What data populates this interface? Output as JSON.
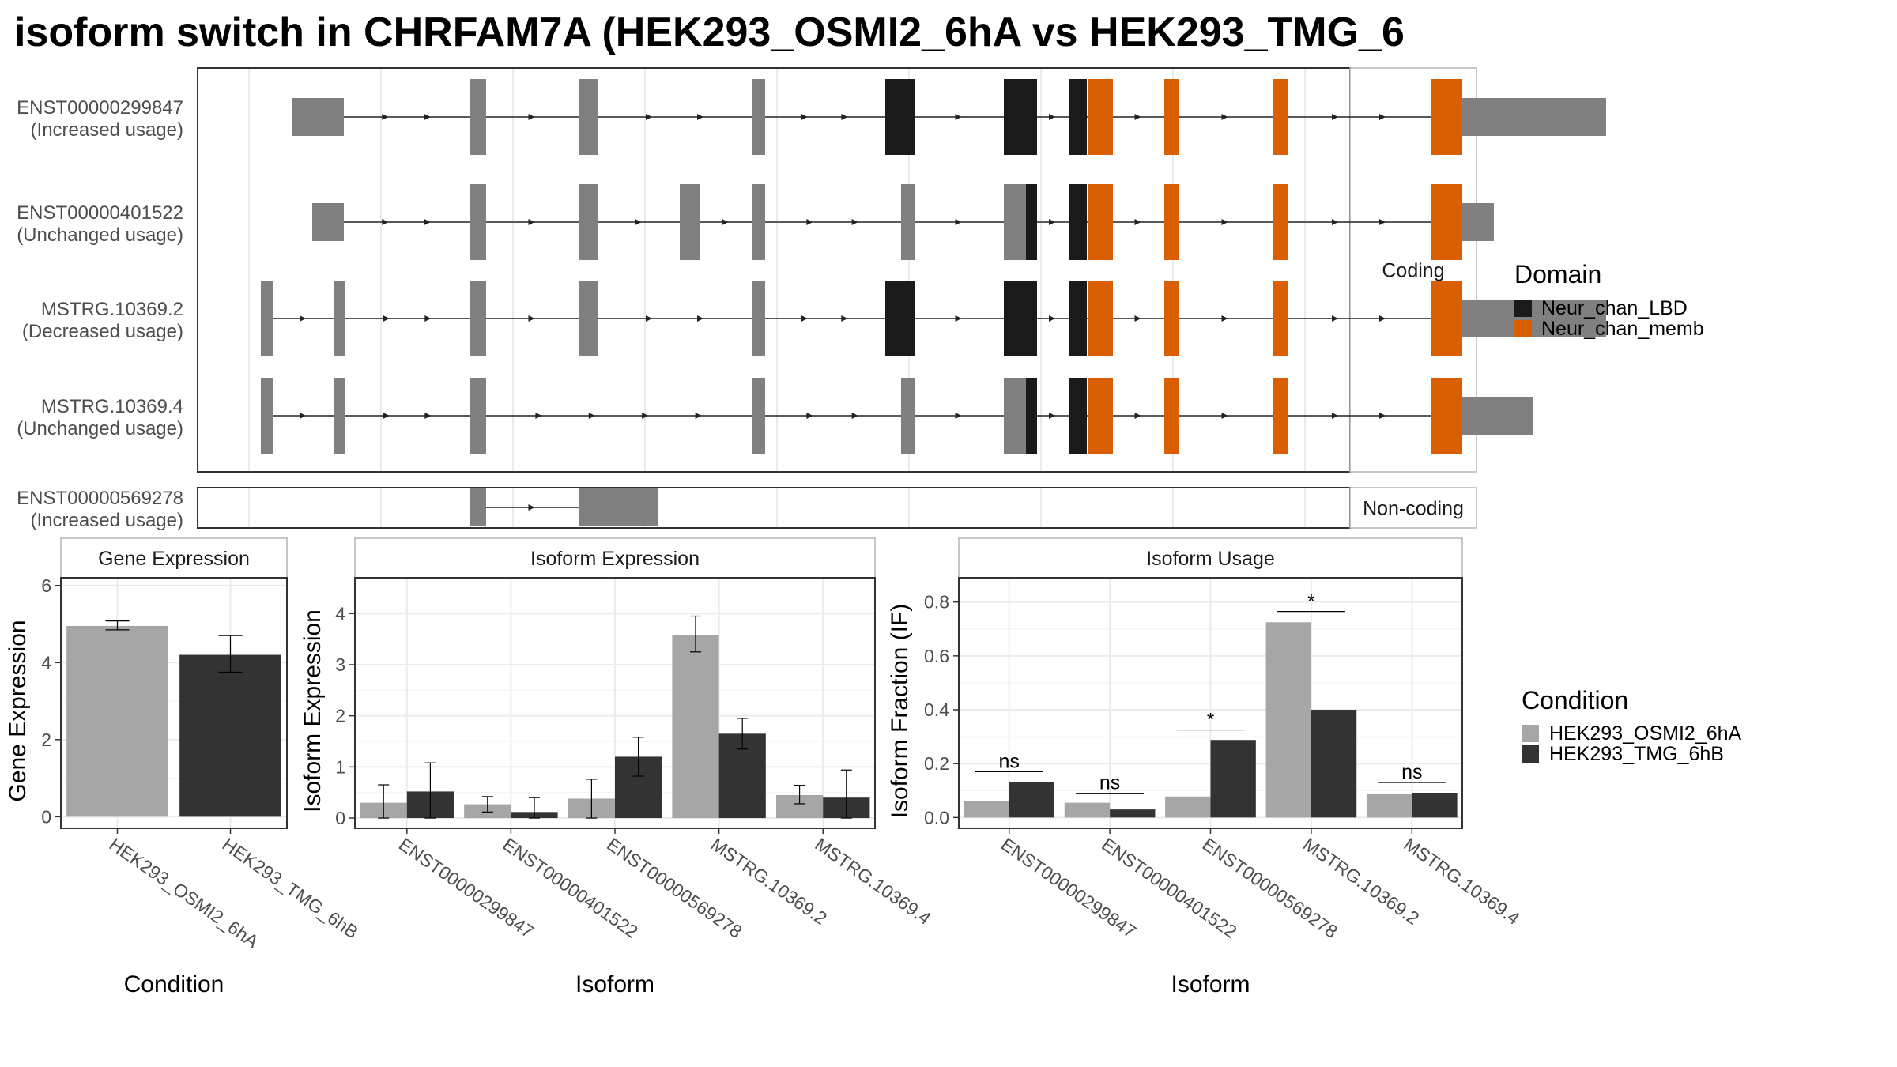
{
  "title": "isoform switch in CHRFAM7A (HEK293_OSMI2_6hA vs HEK293_TMG_6",
  "domains": {
    "title": "Domain",
    "items": [
      {
        "label": "Neur_chan_LBD",
        "color": "#1a1a1a"
      },
      {
        "label": "Neur_chan_memb",
        "color": "#d95f02"
      }
    ]
  },
  "conditions": {
    "title": "Condition",
    "items": [
      {
        "label": "HEK293_OSMI2_6hA",
        "color": "#a6a6a6"
      },
      {
        "label": "HEK293_TMG_6hB",
        "color": "#333333"
      }
    ]
  },
  "structure": {
    "coding_label": "Coding",
    "noncoding_label": "Non-coding",
    "transcripts": [
      {
        "id": "ENST00000299847",
        "usage": "(Increased usage)",
        "group": "coding",
        "exons": [
          [
            120,
            185
          ],
          [
            345,
            365
          ],
          [
            482,
            493
          ],
          [
            493,
            507
          ],
          [
            702,
            718
          ],
          [
            870,
            890
          ],
          [
            890,
            907
          ],
          [
            1020,
            1062
          ],
          [
            1102,
            1125
          ],
          [
            1140,
            1158
          ],
          [
            1223,
            1241
          ],
          [
            1360,
            1380
          ],
          [
            1560,
            1600
          ],
          [
            1600,
            1782
          ]
        ],
        "domains": [
          {
            "start": 870,
            "end": 907,
            "type": 0
          },
          {
            "start": 1020,
            "end": 1062,
            "type": 0
          },
          {
            "start": 1102,
            "end": 1125,
            "type": 0
          },
          {
            "start": 1127,
            "end": 1158,
            "type": 1
          },
          {
            "start": 1223,
            "end": 1241,
            "type": 1
          },
          {
            "start": 1360,
            "end": 1380,
            "type": 1
          },
          {
            "start": 1560,
            "end": 1600,
            "type": 1
          }
        ]
      },
      {
        "id": "ENST00000401522",
        "usage": "(Unchanged usage)",
        "group": "coding",
        "exons": [
          [
            145,
            185
          ],
          [
            345,
            365
          ],
          [
            482,
            507
          ],
          [
            610,
            635
          ],
          [
            702,
            718
          ],
          [
            890,
            907
          ],
          [
            1020,
            1048
          ],
          [
            1048,
            1062
          ],
          [
            1102,
            1125
          ],
          [
            1140,
            1158
          ],
          [
            1223,
            1241
          ],
          [
            1360,
            1380
          ],
          [
            1560,
            1600
          ],
          [
            1600,
            1640
          ]
        ],
        "domains": [
          {
            "start": 1048,
            "end": 1062,
            "type": 0
          },
          {
            "start": 1102,
            "end": 1125,
            "type": 0
          },
          {
            "start": 1127,
            "end": 1158,
            "type": 1
          },
          {
            "start": 1223,
            "end": 1241,
            "type": 1
          },
          {
            "start": 1360,
            "end": 1380,
            "type": 1
          },
          {
            "start": 1560,
            "end": 1600,
            "type": 1
          }
        ]
      },
      {
        "id": "MSTRG.10369.2",
        "usage": "(Decreased usage)",
        "group": "coding",
        "exons": [
          [
            80,
            96
          ],
          [
            172,
            187
          ],
          [
            345,
            365
          ],
          [
            482,
            493
          ],
          [
            493,
            507
          ],
          [
            702,
            718
          ],
          [
            870,
            890
          ],
          [
            890,
            907
          ],
          [
            1020,
            1062
          ],
          [
            1102,
            1125
          ],
          [
            1140,
            1158
          ],
          [
            1223,
            1241
          ],
          [
            1360,
            1380
          ],
          [
            1560,
            1600
          ],
          [
            1600,
            1782
          ]
        ],
        "domains": [
          {
            "start": 870,
            "end": 907,
            "type": 0
          },
          {
            "start": 1020,
            "end": 1062,
            "type": 0
          },
          {
            "start": 1102,
            "end": 1125,
            "type": 0
          },
          {
            "start": 1127,
            "end": 1158,
            "type": 1
          },
          {
            "start": 1223,
            "end": 1241,
            "type": 1
          },
          {
            "start": 1360,
            "end": 1380,
            "type": 1
          },
          {
            "start": 1560,
            "end": 1600,
            "type": 1
          }
        ]
      },
      {
        "id": "MSTRG.10369.4",
        "usage": "(Unchanged usage)",
        "group": "coding",
        "exons": [
          [
            80,
            96
          ],
          [
            172,
            187
          ],
          [
            345,
            365
          ],
          [
            702,
            718
          ],
          [
            890,
            907
          ],
          [
            1020,
            1048
          ],
          [
            1048,
            1062
          ],
          [
            1102,
            1125
          ],
          [
            1140,
            1158
          ],
          [
            1223,
            1241
          ],
          [
            1360,
            1380
          ],
          [
            1560,
            1600
          ],
          [
            1600,
            1690
          ]
        ],
        "domains": [
          {
            "start": 1048,
            "end": 1062,
            "type": 0
          },
          {
            "start": 1102,
            "end": 1125,
            "type": 0
          },
          {
            "start": 1127,
            "end": 1158,
            "type": 1
          },
          {
            "start": 1223,
            "end": 1241,
            "type": 1
          },
          {
            "start": 1360,
            "end": 1380,
            "type": 1
          },
          {
            "start": 1560,
            "end": 1600,
            "type": 1
          }
        ]
      },
      {
        "id": "ENST00000569278",
        "usage": "(Increased usage)",
        "group": "noncoding",
        "exons": [
          [
            345,
            365
          ],
          [
            482,
            582
          ]
        ],
        "domains": []
      }
    ]
  },
  "chart_data": [
    {
      "type": "bar",
      "title": "Gene Expression",
      "xlabel": "Condition",
      "ylabel": "Gene Expression",
      "categories": [
        "HEK293_OSMI2_6hA",
        "HEK293_TMG_6hB"
      ],
      "values": [
        4.95,
        4.2
      ],
      "error_low": [
        4.85,
        3.75
      ],
      "error_high": [
        5.08,
        4.7
      ],
      "ylim": [
        -0.3,
        6.2
      ],
      "yticks": [
        0,
        2,
        4,
        6
      ]
    },
    {
      "type": "bar",
      "title": "Isoform Expression",
      "xlabel": "Isoform",
      "ylabel": "Isoform Expression",
      "categories": [
        "ENST00000299847",
        "ENST00000401522",
        "ENST00000569278",
        "MSTRG.10369.2",
        "MSTRG.10369.4"
      ],
      "series": [
        {
          "name": "HEK293_OSMI2_6hA",
          "values": [
            0.3,
            0.27,
            0.38,
            3.58,
            0.45
          ],
          "error_low": [
            0.0,
            0.12,
            0.0,
            3.25,
            0.28
          ],
          "error_high": [
            0.65,
            0.42,
            0.76,
            3.95,
            0.64
          ]
        },
        {
          "name": "HEK293_TMG_6hB",
          "values": [
            0.52,
            0.12,
            1.2,
            1.65,
            0.4
          ],
          "error_low": [
            0.0,
            0.0,
            0.82,
            1.35,
            0.0
          ],
          "error_high": [
            1.08,
            0.4,
            1.58,
            1.95,
            0.94
          ]
        }
      ],
      "ylim": [
        -0.2,
        4.7
      ],
      "yticks": [
        0,
        1,
        2,
        3,
        4
      ]
    },
    {
      "type": "bar",
      "title": "Isoform Usage",
      "xlabel": "Isoform",
      "ylabel": "Isoform Fraction (IF)",
      "categories": [
        "ENST00000299847",
        "ENST00000401522",
        "ENST00000569278",
        "MSTRG.10369.2",
        "MSTRG.10369.4"
      ],
      "series": [
        {
          "name": "HEK293_OSMI2_6hA",
          "values": [
            0.06,
            0.055,
            0.078,
            0.725,
            0.088
          ]
        },
        {
          "name": "HEK293_TMG_6hB",
          "values": [
            0.133,
            0.03,
            0.288,
            0.4,
            0.092
          ]
        }
      ],
      "significance": [
        "ns",
        "ns",
        "*",
        "*",
        "ns"
      ],
      "sig_y": [
        0.17,
        0.09,
        0.325,
        0.765,
        0.13
      ],
      "ylim": [
        -0.04,
        0.89
      ],
      "yticks": [
        0.0,
        0.2,
        0.4,
        0.6,
        0.8
      ],
      "ytick_labels": [
        "0.0",
        "0.2",
        "0.4",
        "0.6",
        "0.8"
      ]
    }
  ]
}
